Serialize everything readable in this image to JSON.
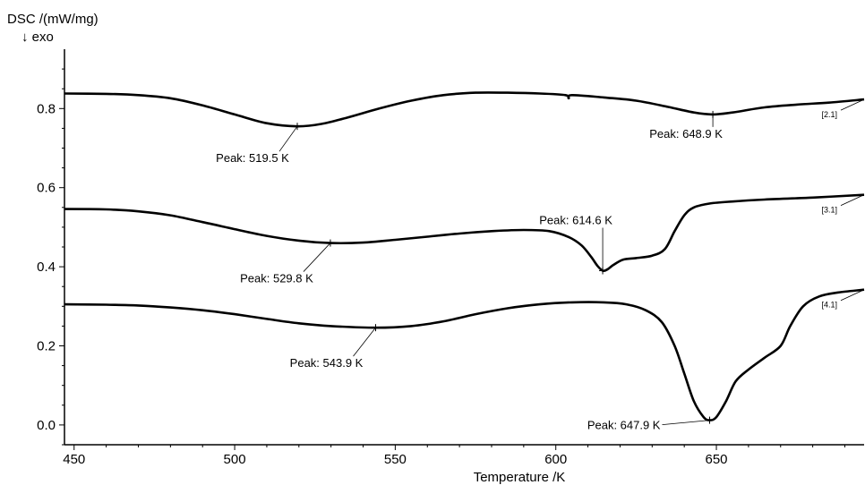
{
  "chart_data": {
    "type": "line",
    "title": "",
    "xlabel": "Temperature /K",
    "ylabel": "DSC /(mW/mg)",
    "ylabel_note": "↓ exo",
    "xlim": [
      447,
      696
    ],
    "ylim": [
      -0.05,
      0.95
    ],
    "x_ticks": [
      450,
      500,
      550,
      600,
      650
    ],
    "y_ticks": [
      0.0,
      0.2,
      0.4,
      0.6,
      0.8
    ],
    "y_tick_labels": [
      "0.0",
      "0.2",
      "0.4",
      "0.6",
      "0.8"
    ],
    "grid": false,
    "series": [
      {
        "name": "[2.1]",
        "points": [
          [
            447,
            0.838
          ],
          [
            460,
            0.837
          ],
          [
            470,
            0.834
          ],
          [
            480,
            0.826
          ],
          [
            490,
            0.808
          ],
          [
            500,
            0.785
          ],
          [
            510,
            0.763
          ],
          [
            519.5,
            0.755
          ],
          [
            527,
            0.761
          ],
          [
            535,
            0.777
          ],
          [
            545,
            0.8
          ],
          [
            555,
            0.82
          ],
          [
            565,
            0.834
          ],
          [
            575,
            0.84
          ],
          [
            585,
            0.84
          ],
          [
            595,
            0.838
          ],
          [
            603,
            0.834
          ],
          [
            604,
            0.826
          ],
          [
            605,
            0.834
          ],
          [
            615,
            0.828
          ],
          [
            625,
            0.82
          ],
          [
            635,
            0.804
          ],
          [
            643,
            0.79
          ],
          [
            648.9,
            0.785
          ],
          [
            655,
            0.79
          ],
          [
            665,
            0.803
          ],
          [
            675,
            0.81
          ],
          [
            685,
            0.815
          ],
          [
            696,
            0.823
          ]
        ],
        "peaks": [
          {
            "x": 519.5,
            "y": 0.755,
            "label": "Peak: 519.5 K"
          },
          {
            "x": 648.9,
            "y": 0.785,
            "label": "Peak: 648.9 K"
          }
        ]
      },
      {
        "name": "[3.1]",
        "points": [
          [
            447,
            0.546
          ],
          [
            460,
            0.545
          ],
          [
            470,
            0.54
          ],
          [
            480,
            0.53
          ],
          [
            490,
            0.513
          ],
          [
            500,
            0.495
          ],
          [
            510,
            0.478
          ],
          [
            520,
            0.466
          ],
          [
            529.8,
            0.46
          ],
          [
            540,
            0.461
          ],
          [
            550,
            0.468
          ],
          [
            560,
            0.476
          ],
          [
            570,
            0.484
          ],
          [
            580,
            0.49
          ],
          [
            590,
            0.493
          ],
          [
            598,
            0.49
          ],
          [
            604,
            0.475
          ],
          [
            608,
            0.454
          ],
          [
            611,
            0.425
          ],
          [
            613,
            0.402
          ],
          [
            614.6,
            0.39
          ],
          [
            616,
            0.393
          ],
          [
            618,
            0.405
          ],
          [
            621,
            0.418
          ],
          [
            625,
            0.422
          ],
          [
            630,
            0.428
          ],
          [
            634,
            0.445
          ],
          [
            637,
            0.49
          ],
          [
            640,
            0.53
          ],
          [
            643,
            0.55
          ],
          [
            648,
            0.56
          ],
          [
            655,
            0.565
          ],
          [
            665,
            0.57
          ],
          [
            680,
            0.575
          ],
          [
            696,
            0.582
          ]
        ],
        "peaks": [
          {
            "x": 529.8,
            "y": 0.46,
            "label": "Peak: 529.8 K"
          },
          {
            "x": 614.6,
            "y": 0.39,
            "label": "Peak: 614.6 K"
          }
        ]
      },
      {
        "name": "[4.1]",
        "points": [
          [
            447,
            0.305
          ],
          [
            460,
            0.304
          ],
          [
            470,
            0.302
          ],
          [
            480,
            0.297
          ],
          [
            490,
            0.29
          ],
          [
            500,
            0.28
          ],
          [
            510,
            0.268
          ],
          [
            520,
            0.257
          ],
          [
            530,
            0.25
          ],
          [
            543.9,
            0.246
          ],
          [
            555,
            0.25
          ],
          [
            565,
            0.262
          ],
          [
            575,
            0.28
          ],
          [
            585,
            0.295
          ],
          [
            595,
            0.305
          ],
          [
            605,
            0.31
          ],
          [
            615,
            0.31
          ],
          [
            622,
            0.305
          ],
          [
            628,
            0.29
          ],
          [
            633,
            0.26
          ],
          [
            637,
            0.2
          ],
          [
            640,
            0.13
          ],
          [
            643,
            0.06
          ],
          [
            646,
            0.02
          ],
          [
            647.9,
            0.012
          ],
          [
            650,
            0.02
          ],
          [
            653,
            0.06
          ],
          [
            656,
            0.11
          ],
          [
            660,
            0.14
          ],
          [
            665,
            0.17
          ],
          [
            670,
            0.2
          ],
          [
            673,
            0.25
          ],
          [
            677,
            0.3
          ],
          [
            682,
            0.325
          ],
          [
            688,
            0.335
          ],
          [
            696,
            0.342
          ]
        ],
        "peaks": [
          {
            "x": 543.9,
            "y": 0.246,
            "label": "Peak: 543.9 K"
          },
          {
            "x": 647.9,
            "y": 0.012,
            "label": "Peak: 647.9 K"
          }
        ]
      }
    ]
  }
}
